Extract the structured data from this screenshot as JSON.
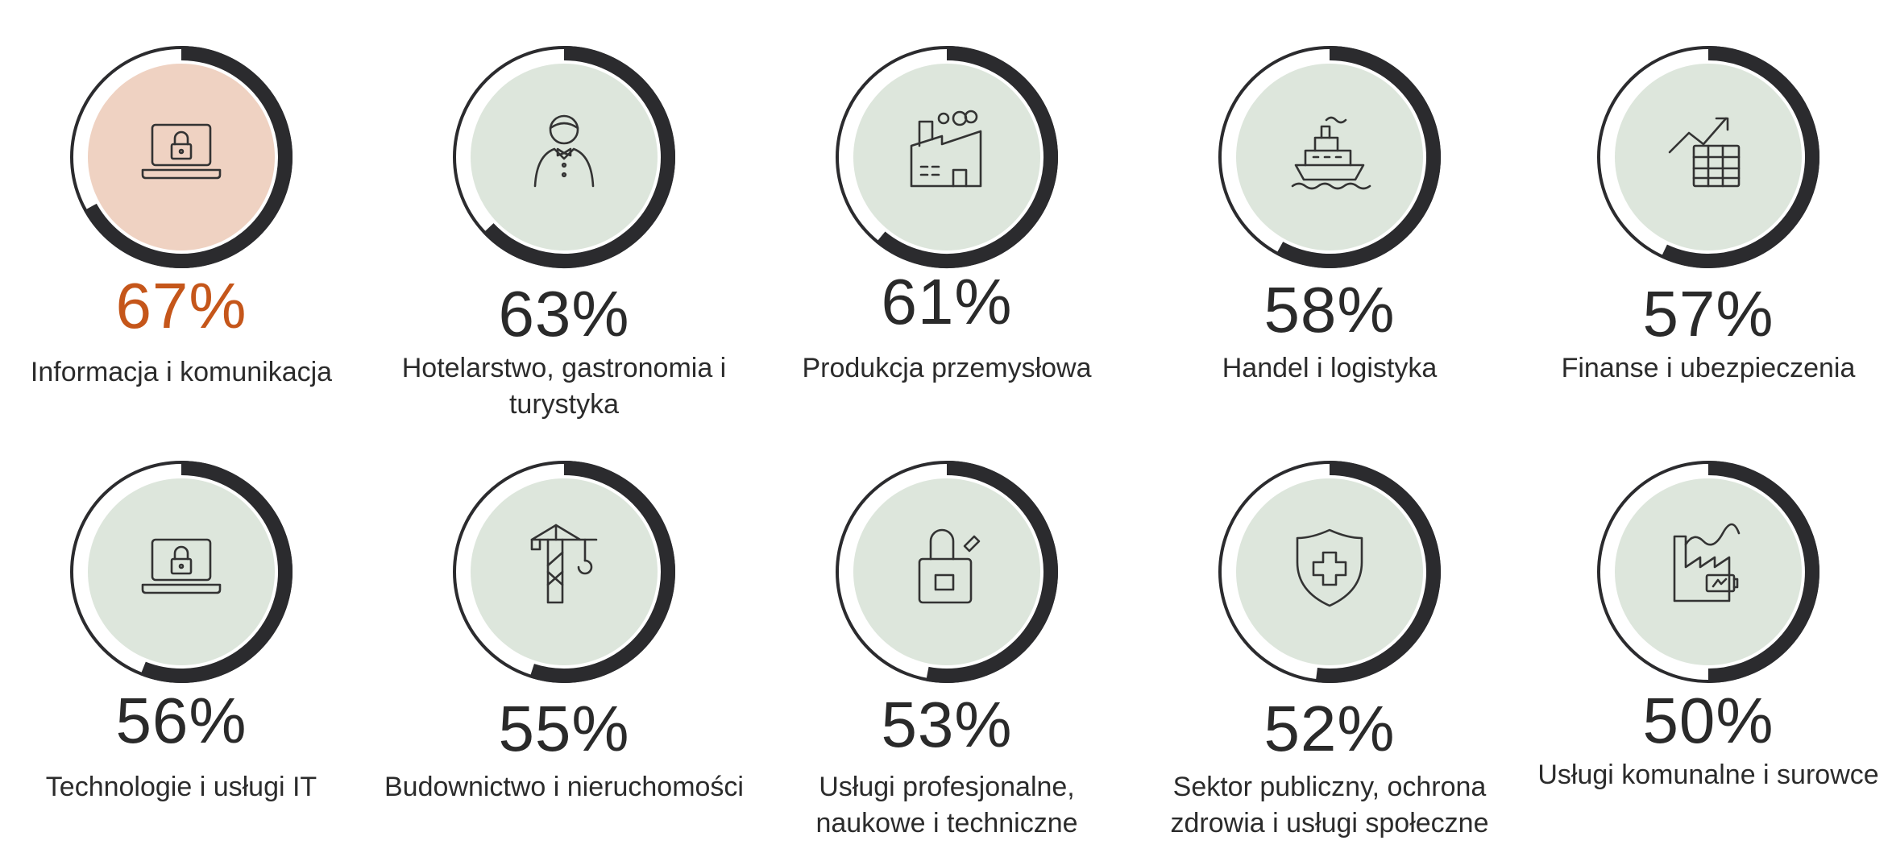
{
  "chart_data": {
    "type": "radial-progress",
    "unit": "%",
    "colors": {
      "highlight_fill": "#efd2c2",
      "fill": "#dde6dc",
      "arc": "#2b2b2e",
      "ring": "#2b2b2e",
      "highlight_text": "#c5561a",
      "text": "#2a2a2a"
    },
    "items": [
      {
        "label": "Informacja i komunikacja",
        "value": 67,
        "value_text": "67%",
        "icon": "laptop-lock-icon",
        "highlight": true
      },
      {
        "label": "Hotelarstwo, gastronomia i turystyka",
        "value": 63,
        "value_text": "63%",
        "icon": "waiter-icon",
        "highlight": false
      },
      {
        "label": "Produkcja przemysłowa",
        "value": 61,
        "value_text": "61%",
        "icon": "factory-icon",
        "highlight": false
      },
      {
        "label": "Handel i logistyka",
        "value": 58,
        "value_text": "58%",
        "icon": "ship-icon",
        "highlight": false
      },
      {
        "label": "Finanse i ubezpieczenia",
        "value": 57,
        "value_text": "57%",
        "icon": "finance-chart-icon",
        "highlight": false
      },
      {
        "label": "Technologie i usługi IT",
        "value": 56,
        "value_text": "56%",
        "icon": "laptop-lock-icon",
        "highlight": false
      },
      {
        "label": "Budownictwo i nieruchomości",
        "value": 55,
        "value_text": "55%",
        "icon": "crane-icon",
        "highlight": false
      },
      {
        "label": "Usługi profesjonalne, naukowe i techniczne",
        "value": 53,
        "value_text": "53%",
        "icon": "briefcase-pen-icon",
        "highlight": false
      },
      {
        "label": "Sektor publiczny, ochrona zdrowia i usługi społeczne",
        "value": 52,
        "value_text": "52%",
        "icon": "shield-cross-icon",
        "highlight": false
      },
      {
        "label": "Usługi komunalne i surowce",
        "value": 50,
        "value_text": "50%",
        "icon": "factory-battery-icon",
        "highlight": false
      }
    ]
  }
}
